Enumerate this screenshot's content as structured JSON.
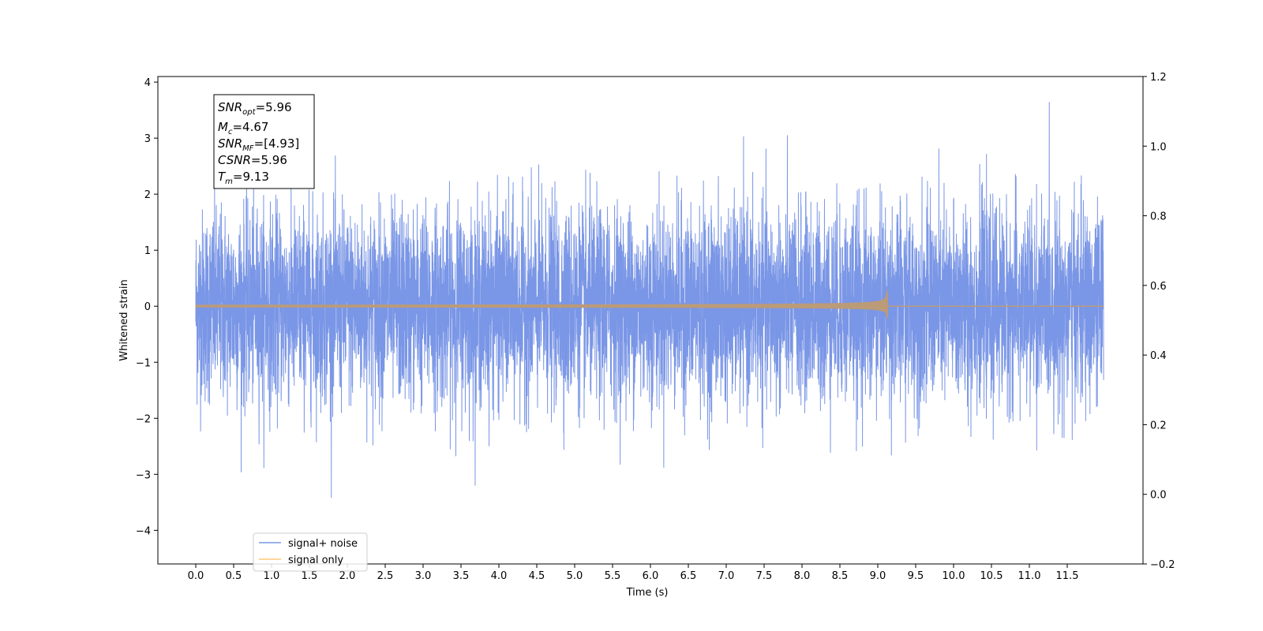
{
  "chart_data": {
    "type": "line",
    "xlabel": "Time (s)",
    "ylabel": "Whitened strain",
    "xlim": [
      -0.5,
      12.5
    ],
    "ylim": [
      -4.6,
      4.1
    ],
    "y2lim": [
      -0.2,
      1.2
    ],
    "x_ticks": [
      "0.0",
      "0.5",
      "1.0",
      "1.5",
      "2.0",
      "2.5",
      "3.0",
      "3.5",
      "4.0",
      "4.5",
      "5.0",
      "5.5",
      "6.0",
      "6.5",
      "7.0",
      "7.5",
      "8.0",
      "8.5",
      "9.0",
      "9.5",
      "10.0",
      "10.5",
      "11.0",
      "11.5"
    ],
    "y_ticks": [
      "−4",
      "−3",
      "−2",
      "−1",
      "0",
      "1",
      "2",
      "3",
      "4"
    ],
    "y2_ticks": [
      "−0.2",
      "0.0",
      "0.2",
      "0.4",
      "0.6",
      "0.8",
      "1.0",
      "1.2"
    ],
    "series": [
      {
        "name": "signal+ noise",
        "color": "#7a96e6",
        "description_values": {
          "t_start": 0.0,
          "t_end": 11.98,
          "typical_envelope": 1.2,
          "peak_max": 3.7,
          "peak_min": -4.2
        }
      },
      {
        "name": "signal only",
        "color": "#ffc87a",
        "description_values": {
          "t_start": 0.0,
          "t_merge": 9.13,
          "t_end": 11.98,
          "amplitude_at_start": 0.02,
          "amplitude_at_merger": 0.6
        }
      }
    ],
    "legend": {
      "placement": "bottom-left",
      "entries": [
        "signal+ noise",
        "signal only"
      ]
    },
    "info_box": {
      "snr_opt_main": "SNR",
      "snr_opt_sub": "opt",
      "snr_opt_value": "=5.96",
      "mc_main": "M",
      "mc_sub": "c",
      "mc_value": "=4.67",
      "snr_mf_main": "SNR",
      "snr_mf_sub": "MF",
      "snr_mf_value": "=[4.93]",
      "csnr_main": "CSNR",
      "csnr_value": "=5.96",
      "tm_main": "T",
      "tm_sub": "m",
      "tm_value": "=9.13"
    },
    "colors": {
      "noise": "#7a96e6",
      "signal": "#ffc87a",
      "overlap": "#bb9b78"
    }
  }
}
